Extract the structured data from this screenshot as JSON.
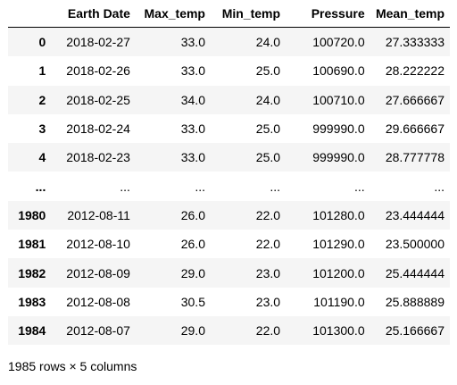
{
  "dataframe": {
    "columns": [
      "",
      "Earth Date",
      "Max_temp",
      "Min_temp",
      "Pressure",
      "Mean_temp"
    ],
    "rows": [
      {
        "index": "0",
        "earth_date": "2018-02-27",
        "max_temp": "33.0",
        "min_temp": "24.0",
        "pressure": "100720.0",
        "mean_temp": "27.333333"
      },
      {
        "index": "1",
        "earth_date": "2018-02-26",
        "max_temp": "33.0",
        "min_temp": "25.0",
        "pressure": "100690.0",
        "mean_temp": "28.222222"
      },
      {
        "index": "2",
        "earth_date": "2018-02-25",
        "max_temp": "34.0",
        "min_temp": "24.0",
        "pressure": "100710.0",
        "mean_temp": "27.666667"
      },
      {
        "index": "3",
        "earth_date": "2018-02-24",
        "max_temp": "33.0",
        "min_temp": "25.0",
        "pressure": "999990.0",
        "mean_temp": "29.666667"
      },
      {
        "index": "4",
        "earth_date": "2018-02-23",
        "max_temp": "33.0",
        "min_temp": "25.0",
        "pressure": "999990.0",
        "mean_temp": "28.777778"
      },
      {
        "index": "...",
        "earth_date": "...",
        "max_temp": "...",
        "min_temp": "...",
        "pressure": "...",
        "mean_temp": "..."
      },
      {
        "index": "1980",
        "earth_date": "2012-08-11",
        "max_temp": "26.0",
        "min_temp": "22.0",
        "pressure": "101280.0",
        "mean_temp": "23.444444"
      },
      {
        "index": "1981",
        "earth_date": "2012-08-10",
        "max_temp": "26.0",
        "min_temp": "22.0",
        "pressure": "101290.0",
        "mean_temp": "23.500000"
      },
      {
        "index": "1982",
        "earth_date": "2012-08-09",
        "max_temp": "29.0",
        "min_temp": "23.0",
        "pressure": "101200.0",
        "mean_temp": "25.444444"
      },
      {
        "index": "1983",
        "earth_date": "2012-08-08",
        "max_temp": "30.5",
        "min_temp": "23.0",
        "pressure": "101190.0",
        "mean_temp": "25.888889"
      },
      {
        "index": "1984",
        "earth_date": "2012-08-07",
        "max_temp": "29.0",
        "min_temp": "22.0",
        "pressure": "101300.0",
        "mean_temp": "25.166667"
      }
    ],
    "footer": "1985 rows × 5 columns"
  }
}
